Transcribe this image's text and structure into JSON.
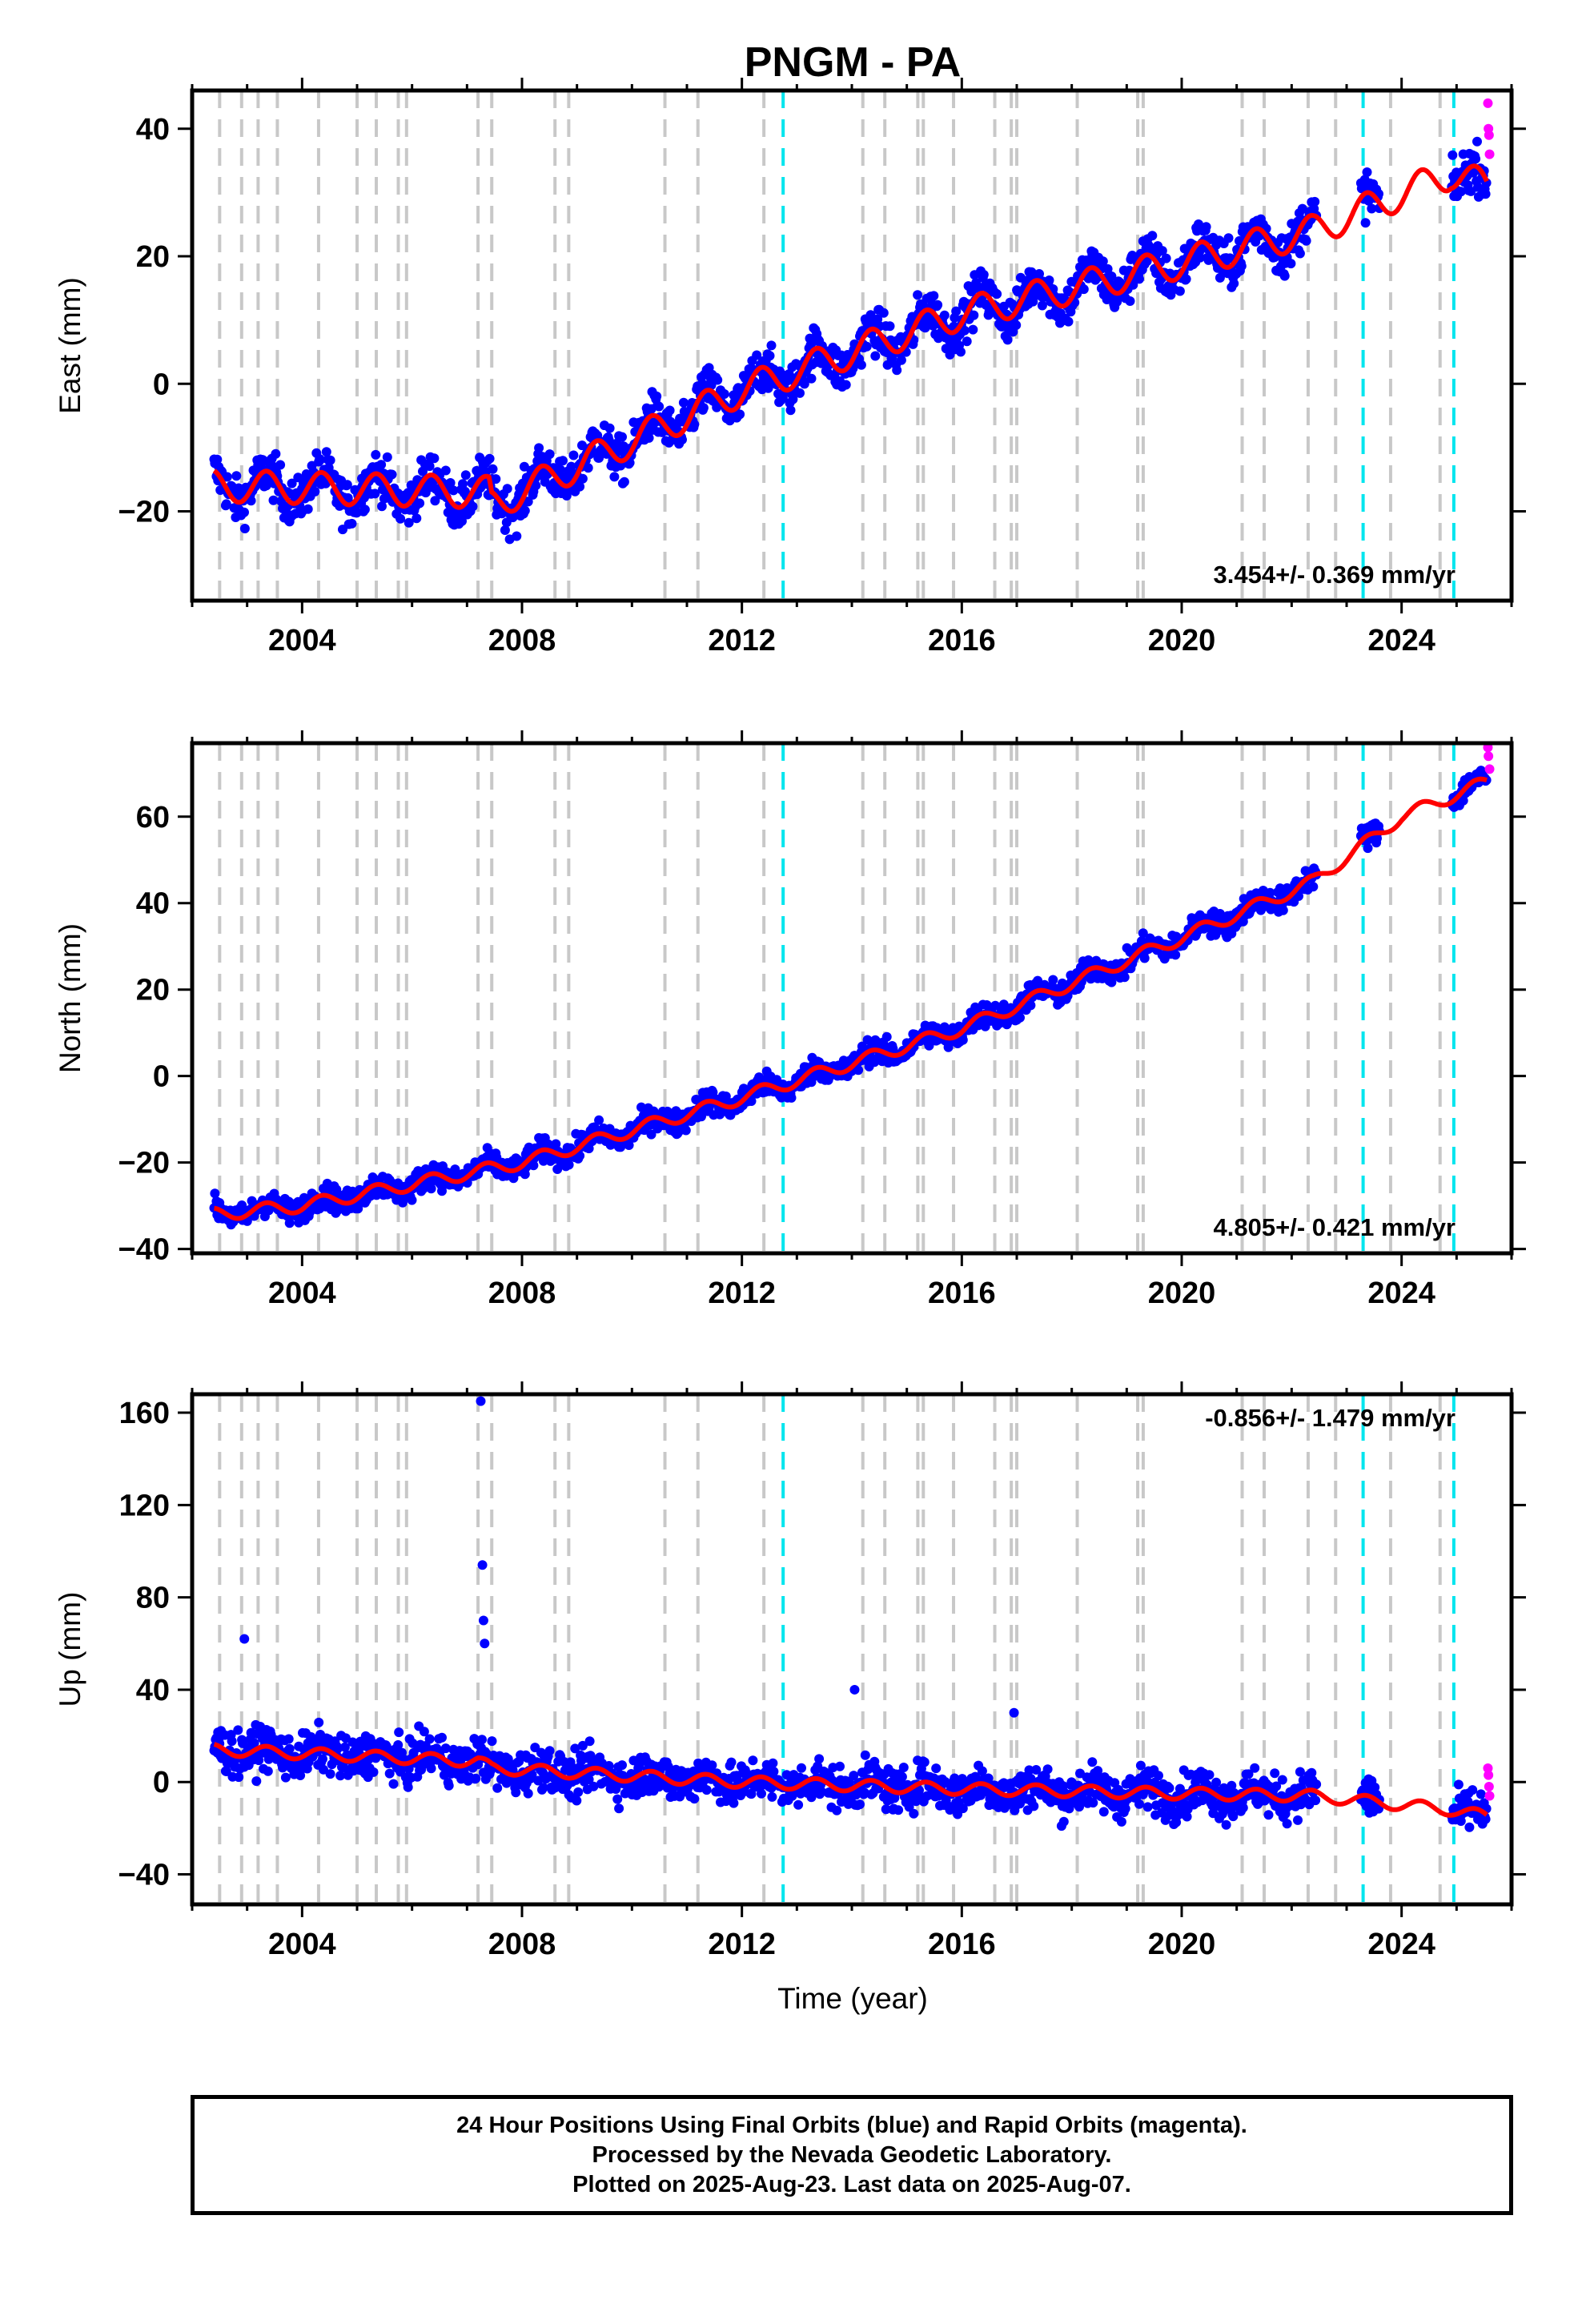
{
  "title": "PNGM - PA",
  "xlabel": "Time (year)",
  "footer": {
    "line1": "24 Hour Positions Using Final Orbits (blue) and Rapid Orbits (magenta).",
    "line2": "Processed by the Nevada Geodetic Laboratory.",
    "line3": "Plotted on 2025-Aug-23. Last data on 2025-Aug-07."
  },
  "colors": {
    "final_orbits": "#0000ff",
    "rapid_orbits": "#ff00ff",
    "model": "#ff0000",
    "equipment_change": "#c8c8c8",
    "event": "#00e5ee"
  },
  "chart_data": [
    {
      "type": "scatter",
      "ylabel": "East (mm)",
      "rate_label": "3.454+/- 0.369 mm/yr",
      "xlim": [
        2002.0,
        2026.0
      ],
      "ylim": [
        -34,
        46
      ],
      "x_ticks": [
        2004,
        2008,
        2012,
        2016,
        2020,
        2024
      ],
      "y_ticks": [
        -20,
        0,
        20,
        40
      ],
      "grid": false,
      "final_orbits_trend": {
        "start_year": 2002.4,
        "end_year": 2025.55,
        "x": [
          2002.4,
          2007.4,
          2007.45,
          2012.0,
          2016.0,
          2020.0,
          2022.4,
          2024.9,
          2025.55
        ],
        "y": [
          -16,
          -17,
          -19,
          -1,
          11,
          19,
          24,
          33,
          31
        ],
        "seasonal_amplitude": 2.5,
        "scatter": 2.5
      },
      "rapid_orbits": {
        "x": [
          2025.57,
          2025.58,
          2025.59,
          2025.6
        ],
        "y": [
          44,
          40,
          39,
          36
        ]
      },
      "model": {
        "x": [
          2002.4,
          2007.4,
          2007.45,
          2012.0,
          2016.0,
          2020.0,
          2022.4,
          2024.9,
          2025.55
        ],
        "y": [
          -16,
          -17,
          -19,
          -1,
          11,
          19,
          24,
          33,
          31
        ]
      },
      "equipment_changes": [
        2002.5,
        2002.9,
        2003.2,
        2003.55,
        2004.3,
        2005.0,
        2005.35,
        2005.75,
        2005.9,
        2007.2,
        2007.45,
        2008.6,
        2008.85,
        2010.6,
        2011.2,
        2012.4,
        2014.2,
        2014.6,
        2015.2,
        2015.3,
        2015.85,
        2016.6,
        2016.9,
        2017.0,
        2018.1,
        2019.2,
        2019.3,
        2021.1,
        2021.5,
        2022.3,
        2022.8,
        2023.8,
        2024.7
      ],
      "events": [
        2012.75,
        2023.3,
        2024.95
      ]
    },
    {
      "type": "scatter",
      "ylabel": "North (mm)",
      "rate_label": "4.805+/- 0.421 mm/yr",
      "xlim": [
        2002.0,
        2026.0
      ],
      "ylim": [
        -41,
        77
      ],
      "x_ticks": [
        2004,
        2008,
        2012,
        2016,
        2020,
        2024
      ],
      "y_ticks": [
        -40,
        -20,
        0,
        20,
        40,
        60
      ],
      "grid": false,
      "final_orbits_trend": {
        "start_year": 2002.4,
        "end_year": 2025.55,
        "x": [
          2002.4,
          2004.0,
          2008.0,
          2012.0,
          2016.0,
          2020.0,
          2022.4,
          2024.0,
          2025.55
        ],
        "y": [
          -32,
          -30,
          -20,
          -5,
          11,
          32,
          45,
          60,
          68
        ],
        "seasonal_amplitude": 1.5,
        "scatter": 2.0
      },
      "rapid_orbits": {
        "x": [
          2025.57,
          2025.58,
          2025.6
        ],
        "y": [
          76,
          74,
          71
        ]
      },
      "model": {
        "x": [
          2002.4,
          2004.0,
          2008.0,
          2012.0,
          2016.0,
          2020.0,
          2022.4,
          2024.0,
          2025.55
        ],
        "y": [
          -32,
          -30,
          -20,
          -5,
          11,
          32,
          45,
          60,
          68
        ]
      },
      "equipment_changes": [
        2002.5,
        2002.9,
        2003.2,
        2003.55,
        2004.3,
        2005.0,
        2005.35,
        2005.75,
        2005.9,
        2007.2,
        2007.45,
        2008.6,
        2008.85,
        2010.6,
        2011.2,
        2012.4,
        2014.2,
        2014.6,
        2015.2,
        2015.3,
        2015.85,
        2016.6,
        2016.9,
        2017.0,
        2018.1,
        2019.2,
        2019.3,
        2021.1,
        2021.5,
        2022.3,
        2022.8,
        2023.8,
        2024.7
      ],
      "events": [
        2012.75,
        2023.3,
        2024.95
      ]
    },
    {
      "type": "scatter",
      "ylabel": "Up (mm)",
      "rate_label": "-0.856+/- 1.479 mm/yr",
      "xlim": [
        2002.0,
        2026.0
      ],
      "ylim": [
        -53,
        168
      ],
      "x_ticks": [
        2004,
        2008,
        2012,
        2016,
        2020,
        2024
      ],
      "y_ticks": [
        -40,
        0,
        40,
        80,
        120,
        160
      ],
      "grid": false,
      "final_orbits_trend": {
        "start_year": 2002.4,
        "end_year": 2025.55,
        "x": [
          2002.4,
          2007.2,
          2007.45,
          2012.0,
          2016.0,
          2020.0,
          2022.4,
          2024.9,
          2025.55
        ],
        "y": [
          14,
          9,
          6,
          0,
          -3,
          -5,
          -6,
          -12,
          -15
        ],
        "seasonal_amplitude": 2.5,
        "scatter": 6.5
      },
      "rapid_orbits": {
        "x": [
          2025.57,
          2025.58,
          2025.59,
          2025.6
        ],
        "y": [
          6,
          3,
          -2,
          -6
        ]
      },
      "model": {
        "x": [
          2002.4,
          2007.2,
          2007.45,
          2012.0,
          2016.0,
          2020.0,
          2022.4,
          2024.9,
          2025.55
        ],
        "y": [
          14,
          9,
          6,
          0,
          -3,
          -5,
          -6,
          -12,
          -15
        ]
      },
      "outliers": {
        "x": [
          2002.95,
          2007.25,
          2007.28,
          2007.3,
          2007.32,
          2014.05,
          2016.95
        ],
        "y": [
          62,
          165,
          94,
          70,
          60,
          40,
          30
        ]
      },
      "equipment_changes": [
        2002.5,
        2002.9,
        2003.2,
        2003.55,
        2004.3,
        2005.0,
        2005.35,
        2005.75,
        2005.9,
        2007.2,
        2007.45,
        2008.6,
        2008.85,
        2010.6,
        2011.2,
        2012.4,
        2014.2,
        2014.6,
        2015.2,
        2015.3,
        2015.85,
        2016.6,
        2016.9,
        2017.0,
        2018.1,
        2019.2,
        2019.3,
        2021.1,
        2021.5,
        2022.3,
        2022.8,
        2023.8,
        2024.7
      ],
      "events": [
        2012.75,
        2023.3,
        2024.95
      ]
    }
  ]
}
